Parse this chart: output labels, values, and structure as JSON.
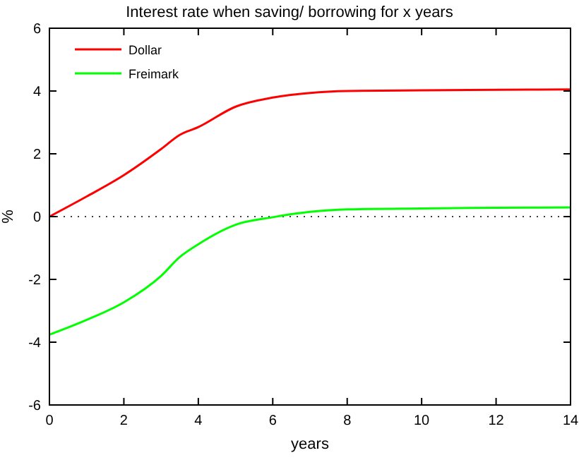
{
  "chart_data": {
    "type": "line",
    "title": "Interest rate when saving/ borrowing for x years",
    "xlabel": "years",
    "ylabel": "%",
    "x": [
      0,
      1,
      2,
      3,
      3.5,
      4,
      5,
      6,
      7,
      8,
      10,
      12,
      14
    ],
    "series": [
      {
        "name": "Dollar",
        "color": "#ff0000",
        "values": [
          0,
          0.64,
          1.32,
          2.15,
          2.6,
          2.85,
          3.5,
          3.79,
          3.94,
          4.0,
          4.02,
          4.04,
          4.05
        ]
      },
      {
        "name": "Freimark",
        "color": "#00ff00",
        "values": [
          -3.76,
          -3.29,
          -2.73,
          -1.89,
          -1.29,
          -0.88,
          -0.26,
          -0.02,
          0.15,
          0.23,
          0.26,
          0.28,
          0.29
        ]
      }
    ],
    "xlim": [
      0,
      14
    ],
    "xticks": [
      0,
      2,
      4,
      6,
      8,
      10,
      12,
      14
    ],
    "ylim": [
      -6,
      6
    ],
    "yticks": [
      -6,
      -4,
      -2,
      0,
      2,
      4,
      6
    ],
    "ref_lines": [
      {
        "axis": "y",
        "value": 0,
        "color": "#000000",
        "line_style": "dotted"
      }
    ],
    "legend": "top left",
    "grid": false,
    "marker": "none",
    "line_style": "solid"
  }
}
